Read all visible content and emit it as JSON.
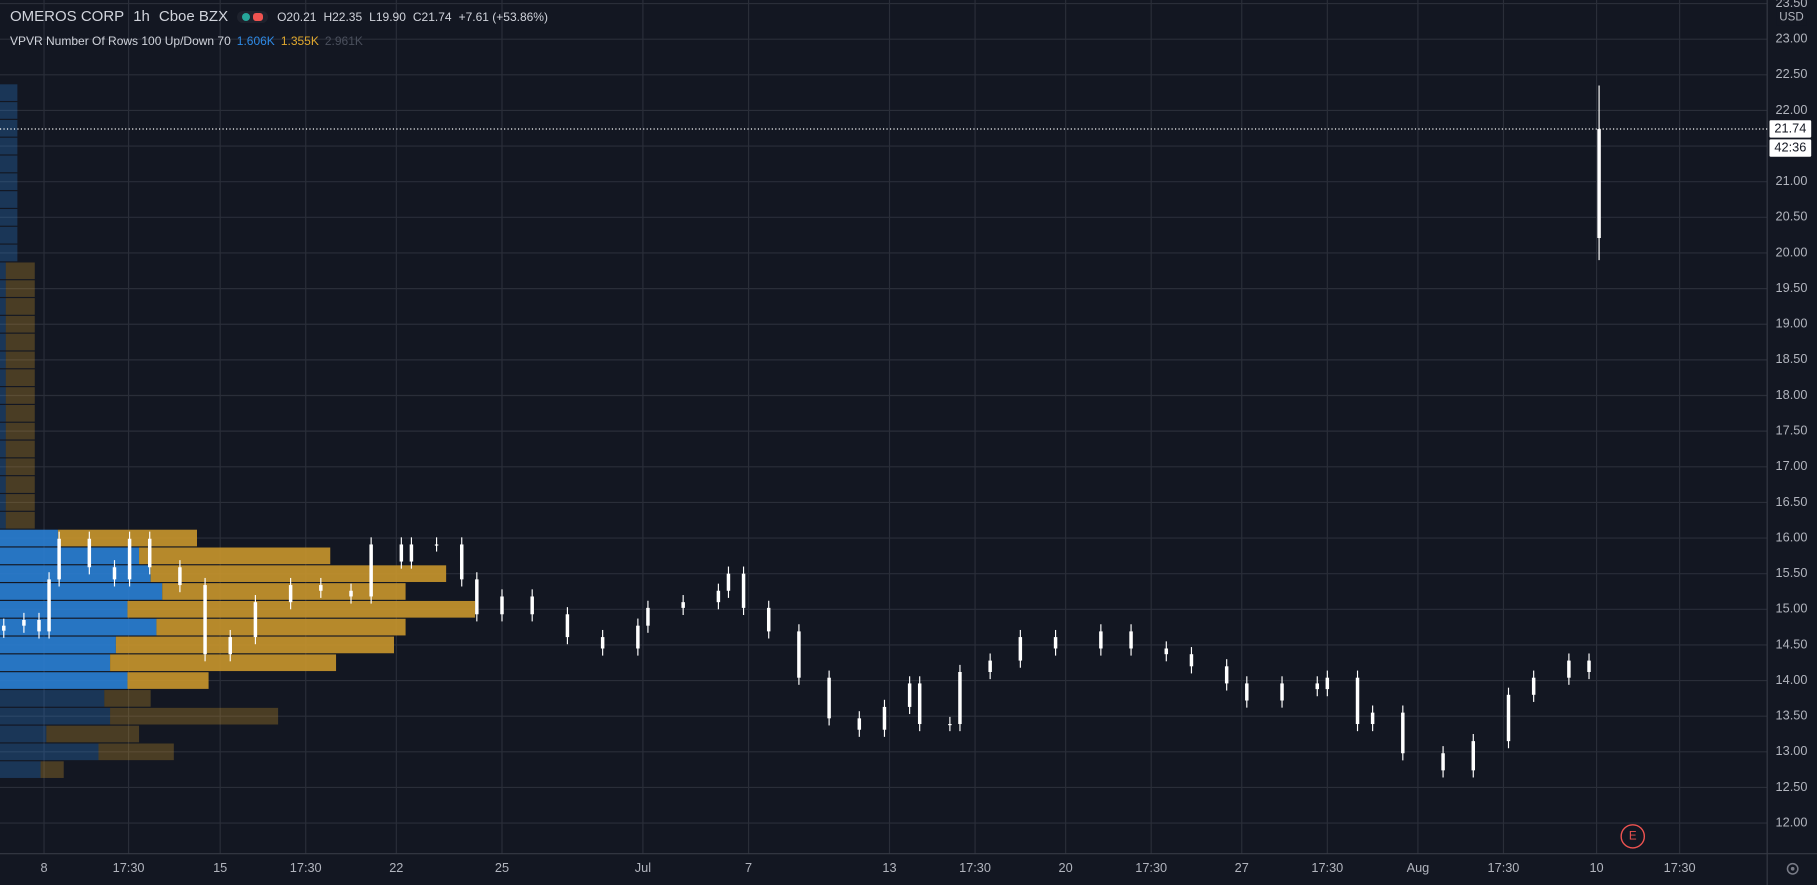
{
  "header": {
    "symbol": "OMEROS CORP",
    "interval": "1h",
    "exchange": "Cboe BZX",
    "open_label": "O",
    "open": "20.21",
    "high_label": "H",
    "high": "22.35",
    "low_label": "L",
    "low": "19.90",
    "close_label": "C",
    "close": "21.74",
    "change": "+7.61 (+53.86%)"
  },
  "indicator": {
    "name": "VPVR Number Of Rows 100 Up/Down 70",
    "up_total": "1.606K",
    "down_total": "1.355K",
    "total": "2.961K"
  },
  "chart_data": {
    "type": "candlestick",
    "currency": "USD",
    "ylim": [
      11.57,
      23.55
    ],
    "yticks": [
      {
        "value": 12,
        "label": "12.00"
      },
      {
        "value": 12.5,
        "label": "12.50"
      },
      {
        "value": 13,
        "label": "13.00"
      },
      {
        "value": 13.5,
        "label": "13.50"
      },
      {
        "value": 14,
        "label": "14.00"
      },
      {
        "value": 14.5,
        "label": "14.50"
      },
      {
        "value": 15,
        "label": "15.00"
      },
      {
        "value": 15.5,
        "label": "15.50"
      },
      {
        "value": 16,
        "label": "16.00"
      },
      {
        "value": 16.5,
        "label": "16.50"
      },
      {
        "value": 17,
        "label": "17.00"
      },
      {
        "value": 17.5,
        "label": "17.50"
      },
      {
        "value": 18,
        "label": "18.00"
      },
      {
        "value": 18.5,
        "label": "18.50"
      },
      {
        "value": 19,
        "label": "19.00"
      },
      {
        "value": 19.5,
        "label": "19.50"
      },
      {
        "value": 20,
        "label": "20.00"
      },
      {
        "value": 20.5,
        "label": "20.50"
      },
      {
        "value": 21,
        "label": "21.00"
      },
      {
        "value": 21.5,
        "label": "21.50"
      },
      {
        "value": 22,
        "label": "22.00"
      },
      {
        "value": 22.5,
        "label": "22.50"
      },
      {
        "value": 23,
        "label": "23.00"
      },
      {
        "value": 23.5,
        "label": "23.50"
      }
    ],
    "xlim": [
      -8.75,
      342.4
    ],
    "xticks": [
      {
        "value": 0,
        "label": "8"
      },
      {
        "value": 16.8,
        "label": "17:30"
      },
      {
        "value": 35,
        "label": "15"
      },
      {
        "value": 52,
        "label": "17:30"
      },
      {
        "value": 70,
        "label": "22"
      },
      {
        "value": 91,
        "label": "25"
      },
      {
        "value": 119,
        "label": "Jul"
      },
      {
        "value": 140,
        "label": "7"
      },
      {
        "value": 168,
        "label": "13"
      },
      {
        "value": 185,
        "label": "17:30"
      },
      {
        "value": 203,
        "label": "20"
      },
      {
        "value": 220,
        "label": "17:30"
      },
      {
        "value": 238,
        "label": "27"
      },
      {
        "value": 255,
        "label": "17:30"
      },
      {
        "value": 273,
        "label": "Aug"
      },
      {
        "value": 290,
        "label": "17:30"
      },
      {
        "value": 308.5,
        "label": "10"
      },
      {
        "value": 325,
        "label": "17:30"
      }
    ],
    "grid": true,
    "candle_color": "#ffffff",
    "candles": {
      "x": [
        -8,
        -4,
        -1,
        1,
        3,
        9,
        14,
        17,
        21,
        27,
        32,
        37,
        42,
        49,
        55,
        61,
        65,
        71,
        73,
        78,
        83,
        86,
        91,
        97,
        104,
        111,
        118,
        120,
        127,
        134,
        136,
        139,
        144,
        150,
        156,
        162,
        167,
        172,
        174,
        180,
        182,
        188,
        194,
        201,
        210,
        216,
        223,
        228,
        235,
        239,
        246,
        253,
        255,
        261,
        264,
        270,
        278,
        284,
        291,
        296,
        303,
        307,
        309
      ],
      "open": [
        14.7,
        14.77,
        14.85,
        14.69,
        15.42,
        15.99,
        15.59,
        15.42,
        15.99,
        15.59,
        15.34,
        14.37,
        14.61,
        15.1,
        15.34,
        15.26,
        15.18,
        15.91,
        15.67,
        15.91,
        15.91,
        15.42,
        14.93,
        15.18,
        14.93,
        14.61,
        14.45,
        14.77,
        15.02,
        15.1,
        15.26,
        15.5,
        15.02,
        14.69,
        14.04,
        13.47,
        13.31,
        13.63,
        13.96,
        13.39,
        13.39,
        14.12,
        14.28,
        14.61,
        14.45,
        14.69,
        14.45,
        14.37,
        14.2,
        13.96,
        13.72,
        13.96,
        13.88,
        14.04,
        13.39,
        13.55,
        12.98,
        12.74,
        13.15,
        13.8,
        14.04,
        14.28,
        20.21
      ],
      "high": [
        14.87,
        14.95,
        14.95,
        15.52,
        16.09,
        16.09,
        15.69,
        16.09,
        16.09,
        15.69,
        15.44,
        14.71,
        15.2,
        15.44,
        15.44,
        15.36,
        16.01,
        16.01,
        16.01,
        16.01,
        16.01,
        15.52,
        15.28,
        15.28,
        15.03,
        14.71,
        14.87,
        15.12,
        15.2,
        15.36,
        15.6,
        15.6,
        15.12,
        14.79,
        14.14,
        13.57,
        13.73,
        14.06,
        14.06,
        13.49,
        14.22,
        14.38,
        14.71,
        14.71,
        14.79,
        14.79,
        14.55,
        14.47,
        14.3,
        14.06,
        14.06,
        14.06,
        14.14,
        14.14,
        13.65,
        13.65,
        13.08,
        13.25,
        13.9,
        14.14,
        14.38,
        14.38,
        22.35
      ],
      "low": [
        14.6,
        14.67,
        14.59,
        14.59,
        15.32,
        15.49,
        15.32,
        15.32,
        15.49,
        15.24,
        14.27,
        14.27,
        14.51,
        15.0,
        15.16,
        15.08,
        15.08,
        15.57,
        15.57,
        15.81,
        15.32,
        14.83,
        14.83,
        14.83,
        14.51,
        14.35,
        14.35,
        14.67,
        14.92,
        15.0,
        15.16,
        14.92,
        14.59,
        13.94,
        13.37,
        13.21,
        13.21,
        13.53,
        13.29,
        13.29,
        13.29,
        14.02,
        14.18,
        14.35,
        14.35,
        14.35,
        14.27,
        14.1,
        13.86,
        13.62,
        13.62,
        13.78,
        13.78,
        13.29,
        13.29,
        12.88,
        12.64,
        12.64,
        13.05,
        13.7,
        13.94,
        14.02,
        19.9
      ],
      "close": [
        14.77,
        14.85,
        14.69,
        15.42,
        15.99,
        15.59,
        15.42,
        15.99,
        15.59,
        15.34,
        14.37,
        14.61,
        15.1,
        15.34,
        15.26,
        15.18,
        15.91,
        15.67,
        15.91,
        15.91,
        15.42,
        14.93,
        15.18,
        14.93,
        14.61,
        14.45,
        14.77,
        15.02,
        15.1,
        15.26,
        15.5,
        15.02,
        14.69,
        14.04,
        13.47,
        13.31,
        13.63,
        13.96,
        13.39,
        13.39,
        14.12,
        14.28,
        14.61,
        14.45,
        14.69,
        14.45,
        14.37,
        14.2,
        13.96,
        13.72,
        13.96,
        13.88,
        14.04,
        13.39,
        13.55,
        12.98,
        12.74,
        13.15,
        13.8,
        14.04,
        14.28,
        14.12,
        21.74
      ]
    },
    "last_price": 21.74,
    "countdown": "42:36",
    "event_label": "E",
    "volume_profile": {
      "up_color": "#2a7fd4",
      "down_color": "#c9962c",
      "row_height": 0.25,
      "value_area": [
        13.875,
        16.125
      ],
      "prices": [
        12.75,
        13,
        13.25,
        13.5,
        13.75,
        14,
        14.25,
        14.5,
        14.75,
        15,
        15.25,
        15.5,
        15.75,
        16,
        16.25,
        16.5,
        16.75,
        17,
        17.25,
        17.5,
        17.75,
        18,
        18.25,
        18.5,
        18.75,
        19,
        19.25,
        19.5,
        19.75,
        20,
        20.25,
        20.5,
        20.75,
        21,
        21.25,
        21.5,
        21.75,
        22,
        22.25
      ],
      "up": [
        35,
        85,
        40,
        95,
        90,
        110,
        95,
        100,
        135,
        110,
        140,
        130,
        120,
        50,
        5,
        5,
        5,
        5,
        5,
        5,
        5,
        5,
        5,
        5,
        5,
        5,
        5,
        5,
        5,
        15,
        15,
        15,
        15,
        15,
        15,
        15,
        15,
        15,
        15
      ],
      "down": [
        20,
        65,
        80,
        145,
        40,
        70,
        195,
        240,
        215,
        300,
        210,
        255,
        165,
        120,
        25,
        25,
        25,
        25,
        25,
        25,
        25,
        25,
        25,
        25,
        25,
        25,
        25,
        25,
        25,
        0,
        0,
        0,
        0,
        0,
        0,
        0,
        0,
        0,
        0
      ]
    }
  }
}
